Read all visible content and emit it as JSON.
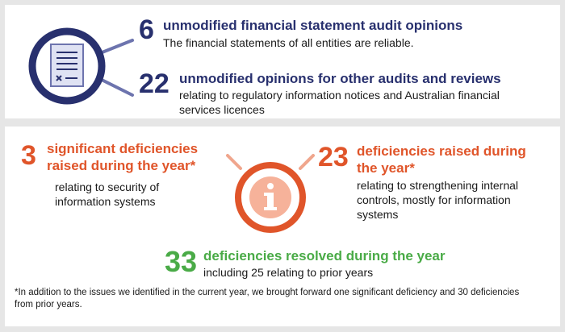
{
  "colors": {
    "navy": "#28306e",
    "orange": "#e0552a",
    "green": "#4aab47"
  },
  "icons": {
    "document": "audit-document-icon",
    "info": "info-icon"
  },
  "audit_opinions": {
    "financial": {
      "number": "6",
      "title": "unmodified financial statement audit opinions",
      "description": "The financial statements of all entities are reliable."
    },
    "other": {
      "number": "22",
      "title": "unmodified opinions for other audits and reviews",
      "description_line1": "relating to regulatory information notices and Australian financial",
      "description_line2": "services licences"
    }
  },
  "deficiencies": {
    "significant": {
      "number": "3",
      "title_line1": "significant deficiencies",
      "title_line2": "raised during the year*",
      "description_line1": "relating to security of",
      "description_line2": "information systems"
    },
    "raised": {
      "number": "23",
      "title_line1": "deficiencies raised during",
      "title_line2": "the year*",
      "description_line1": "relating to strengthening internal",
      "description_line2": "controls, mostly for information",
      "description_line3": "systems"
    },
    "resolved": {
      "number": "33",
      "title": "deficiencies resolved during the year",
      "description": "including 25 relating to prior years"
    }
  },
  "footnote": {
    "line1": "*In addition to the issues we identified in the current year, we brought forward one significant deficiency and 30 deficiencies",
    "line2": "from prior years."
  }
}
